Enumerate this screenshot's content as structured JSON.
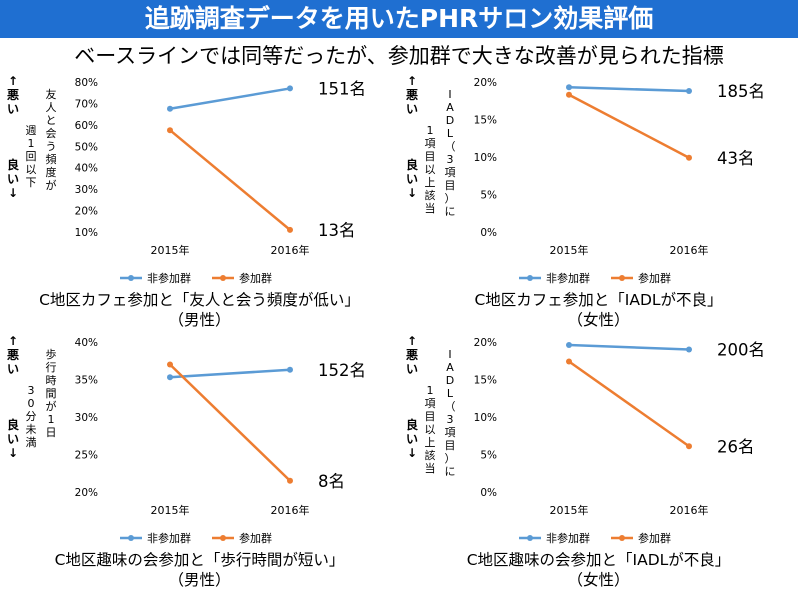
{
  "page_title": "追跡調査データを用いたPHRサロン効果評価",
  "subtitle": "ベースラインでは同等だったが、参加群で大きな改善が見られた指標",
  "axis_direction": {
    "bad": "↑悪い",
    "good": "良い↓"
  },
  "colors": {
    "non_participant": "#5b9bd5",
    "participant": "#ed7d31"
  },
  "chart_data": [
    {
      "type": "line",
      "caption_line1": "C地区カフェ参加と「友人と会う頻度が低い」",
      "caption_line2": "（男性）",
      "ylabel_outer": "週1回以下",
      "ylabel_inner": "友人と会う頻度が",
      "categories": [
        "2015年",
        "2016年"
      ],
      "ylim": [
        10,
        80
      ],
      "yticks": [
        10,
        20,
        30,
        40,
        50,
        60,
        70,
        80
      ],
      "ytick_labels": [
        "10%",
        "20%",
        "30%",
        "40%",
        "50%",
        "60%",
        "70%",
        "80%"
      ],
      "series": [
        {
          "name": "非参加群",
          "values": [
            67.5,
            77
          ],
          "end_label": "151名",
          "color": "#5b9bd5"
        },
        {
          "name": "参加群",
          "values": [
            57.5,
            11
          ],
          "end_label": "13名",
          "color": "#ed7d31"
        }
      ],
      "grid": false,
      "legend": "bottom"
    },
    {
      "type": "line",
      "caption_line1": "C地区カフェ参加と「IADLが不良」",
      "caption_line2": "（女性）",
      "ylabel_outer": "1項目以上該当",
      "ylabel_inner": "IADL（3項目）に",
      "categories": [
        "2015年",
        "2016年"
      ],
      "ylim": [
        0,
        20
      ],
      "yticks": [
        0,
        5,
        10,
        15,
        20
      ],
      "ytick_labels": [
        "0%",
        "5%",
        "10%",
        "15%",
        "20%"
      ],
      "series": [
        {
          "name": "非参加群",
          "values": [
            19.3,
            18.8
          ],
          "end_label": "185名",
          "color": "#5b9bd5"
        },
        {
          "name": "参加群",
          "values": [
            18.3,
            9.9
          ],
          "end_label": "43名",
          "color": "#ed7d31"
        }
      ],
      "grid": false,
      "legend": "bottom"
    },
    {
      "type": "line",
      "caption_line1": "C地区趣味の会参加と「歩行時間が短い」",
      "caption_line2": "（男性）",
      "ylabel_outer": "30分未満",
      "ylabel_inner": "歩行時間が1日",
      "categories": [
        "2015年",
        "2016年"
      ],
      "ylim": [
        20,
        40
      ],
      "yticks": [
        20,
        25,
        30,
        35,
        40
      ],
      "ytick_labels": [
        "20%",
        "25%",
        "30%",
        "35%",
        "40%"
      ],
      "series": [
        {
          "name": "非参加群",
          "values": [
            35.3,
            36.3
          ],
          "end_label": "152名",
          "color": "#5b9bd5"
        },
        {
          "name": "参加群",
          "values": [
            37,
            21.5
          ],
          "end_label": "8名",
          "color": "#ed7d31"
        }
      ],
      "grid": false,
      "legend": "bottom"
    },
    {
      "type": "line",
      "caption_line1": "C地区趣味の会参加と「IADLが不良」",
      "caption_line2": "（女性）",
      "ylabel_outer": "1項目以上該当",
      "ylabel_inner": "IADL（3項目）に",
      "categories": [
        "2015年",
        "2016年"
      ],
      "ylim": [
        0,
        20
      ],
      "yticks": [
        0,
        5,
        10,
        15,
        20
      ],
      "ytick_labels": [
        "0%",
        "5%",
        "10%",
        "15%",
        "20%"
      ],
      "series": [
        {
          "name": "非参加群",
          "values": [
            19.6,
            19
          ],
          "end_label": "200名",
          "color": "#5b9bd5"
        },
        {
          "name": "参加群",
          "values": [
            17.4,
            6.1
          ],
          "end_label": "26名",
          "color": "#ed7d31"
        }
      ],
      "grid": false,
      "legend": "bottom"
    }
  ]
}
